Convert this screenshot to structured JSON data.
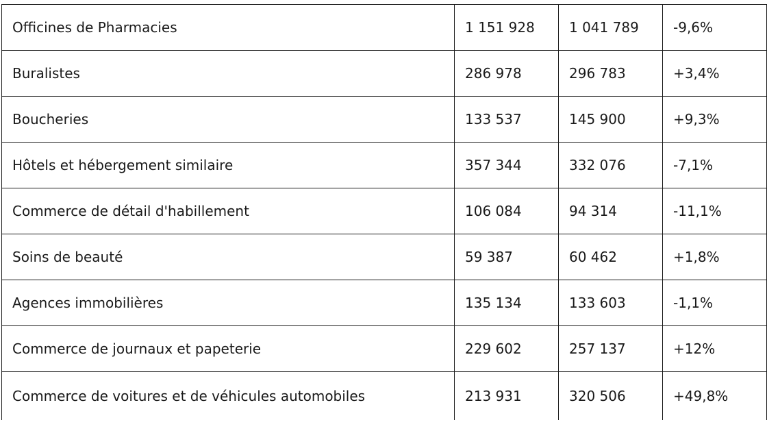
{
  "rows": [
    {
      "label": "Officines de Pharmacies",
      "v1": "1 151 928",
      "v2": "1 041 789",
      "variation": "-9,6%"
    },
    {
      "label": "Buralistes",
      "v1": "286 978",
      "v2": "296 783",
      "variation": "+3,4%"
    },
    {
      "label": "Boucheries",
      "v1": "133 537",
      "v2": "145 900",
      "variation": "+9,3%"
    },
    {
      "label": "Hôtels et hébergement similaire",
      "v1": "357 344",
      "v2": "332 076",
      "variation": "-7,1%"
    },
    {
      "label": "Commerce de détail d'habillement",
      "v1": "106 084",
      "v2": "94 314",
      "variation": "-11,1%"
    },
    {
      "label": "Soins de beauté",
      "v1": "59 387",
      "v2": "60 462",
      "variation": "+1,8%"
    },
    {
      "label": "Agences immobilières",
      "v1": "135 134",
      "v2": "133 603",
      "variation": "-1,1%"
    },
    {
      "label": "Commerce de journaux et papeterie",
      "v1": "229 602",
      "v2": "257 137",
      "variation": "+12%"
    },
    {
      "label": "Commerce de voitures et de véhicules automobiles",
      "v1": "213 931",
      "v2": "320 506",
      "variation": "+49,8%"
    }
  ]
}
